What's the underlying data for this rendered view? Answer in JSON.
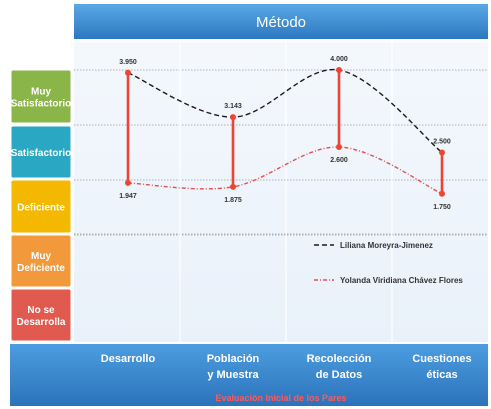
{
  "chart_data": {
    "type": "line",
    "title": "Método",
    "xlabel": "Evaluación Inicial de los Pares",
    "categories": [
      "Desarrollo",
      "Población y Muestra",
      "Recolección de Datos",
      "Cuestiones éticas"
    ],
    "category_lines": [
      [
        "Desarrollo"
      ],
      [
        "Población",
        "y Muestra"
      ],
      [
        "Recolección",
        "de Datos"
      ],
      [
        "Cuestiones",
        "éticas"
      ]
    ],
    "y_levels": [
      {
        "label": [
          "Muy",
          "Satisfactorio"
        ],
        "color": "#8ab548"
      },
      {
        "label": [
          "Satisfactorio"
        ],
        "color": "#2aa7c2"
      },
      {
        "label": [
          "Deficiente"
        ],
        "color": "#f5b800"
      },
      {
        "label": [
          "Muy",
          "Deficiente"
        ],
        "color": "#f29a3b"
      },
      {
        "label": [
          "No se",
          "Desarrolla"
        ],
        "color": "#e05a4f"
      }
    ],
    "ylim": [
      0,
      5
    ],
    "grid": true,
    "legend_position": "center-right",
    "series": [
      {
        "name": "Liliana Moreyra-Jimenez",
        "values": [
          3.95,
          3.143,
          4.0,
          2.5
        ],
        "labels": [
          "3.950",
          "3.143",
          "4.000",
          "2.500"
        ],
        "color": "#1a1a1a",
        "dash": "5,3"
      },
      {
        "name": "Yolanda Viridiana Chávez Flores",
        "values": [
          1.947,
          1.875,
          2.6,
          1.75
        ],
        "labels": [
          "1.947",
          "1.875",
          "2.600",
          "1.750"
        ],
        "color": "#e35050",
        "dash": "4,2,1,2"
      }
    ],
    "range_bar_color": "#ee4433"
  }
}
